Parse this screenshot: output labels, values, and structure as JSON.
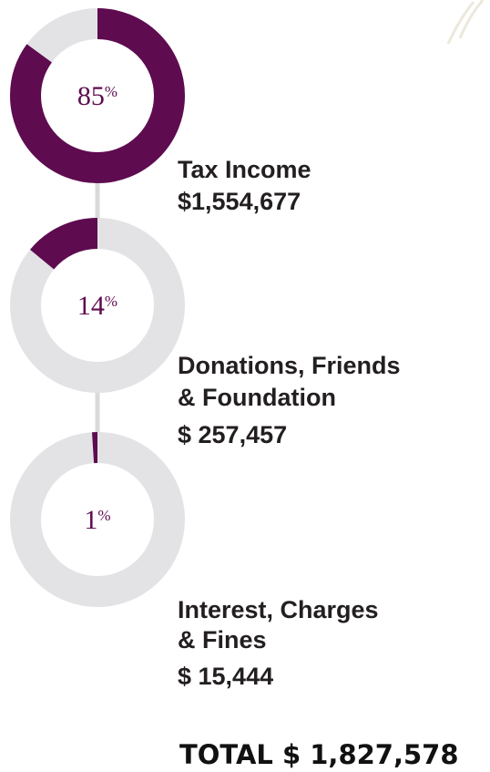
{
  "chart_data": [
    {
      "type": "donut",
      "values": [
        85
      ],
      "value_labels": [
        "85%"
      ],
      "color": "#5e0b50",
      "track_color": "#e3e3e6",
      "clockwise": true,
      "label_lines": [
        "Tax Income"
      ],
      "amount": "$1,554,677"
    },
    {
      "type": "donut",
      "values": [
        14
      ],
      "value_labels": [
        "14%"
      ],
      "color": "#5e0b50",
      "track_color": "#e3e3e6",
      "clockwise": false,
      "label_lines": [
        "Donations, Friends",
        "& Foundation"
      ],
      "amount": "$ 257,457"
    },
    {
      "type": "donut",
      "values": [
        1
      ],
      "value_labels": [
        "1%"
      ],
      "color": "#5e0b50",
      "track_color": "#e3e3e6",
      "clockwise": false,
      "label_lines": [
        "Interest, Charges",
        "& Fines"
      ],
      "amount": "$ 15,444"
    }
  ],
  "total": "TOTAL $ 1,827,578"
}
